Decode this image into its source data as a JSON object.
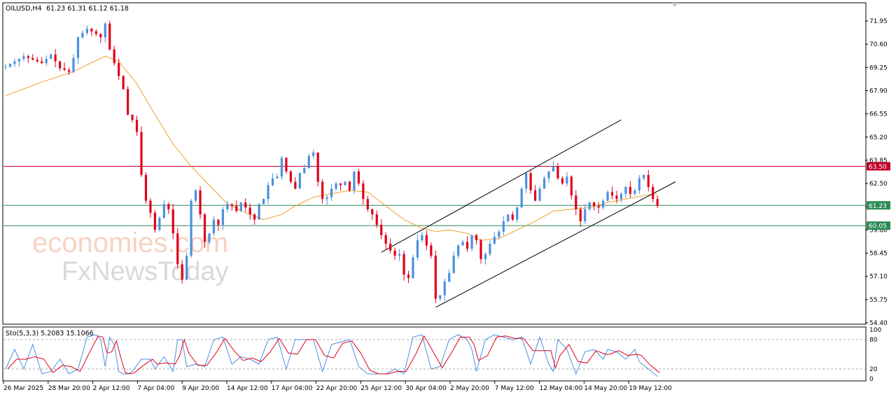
{
  "header": {
    "symbol": "OILUSD,H4",
    "ohlc": "61.23 61.31 61.12 61.18"
  },
  "colors": {
    "bull": "#4a90e2",
    "bear": "#e0001b",
    "ma": "#f0a030",
    "resistance": "#c0002a",
    "support": "#2e8b57",
    "channel": "#000000",
    "stoch_k": "#4a90e2",
    "stoch_d": "#e0001b"
  },
  "watermark": {
    "line1": "economies.com",
    "line2": "FxNewsToday"
  },
  "stochastic": {
    "label": "Sto(5,3,3) 5.2083 15.1066",
    "axis": [
      "100",
      "80",
      "20",
      "0"
    ]
  },
  "chart_data": {
    "type": "candlestick",
    "title": "OILUSD,H4",
    "y_ticks": [
      "71.95",
      "70.60",
      "69.25",
      "67.90",
      "66.55",
      "65.20",
      "63.85",
      "62.50",
      "61.15",
      "59.80",
      "58.45",
      "57.10",
      "55.75",
      "54.40"
    ],
    "ylim": [
      54.4,
      72.5
    ],
    "x_ticks": [
      "26 Mar 2025",
      "28 Mar 20:00",
      "2 Apr 12:00",
      "7 Apr 04:00",
      "9 Apr 20:00",
      "14 Apr 12:00",
      "17 Apr 04:00",
      "22 Apr 20:00",
      "25 Apr 12:00",
      "30 Apr 04:00",
      "2 May 20:00",
      "7 May 12:00",
      "12 May 04:00",
      "14 May 20:00",
      "19 May 12:00"
    ],
    "price_levels": [
      {
        "label": "63.50",
        "value": 63.5,
        "color": "#c0002a"
      },
      {
        "label": "61.23",
        "value": 61.23,
        "color": "#2e8b57"
      },
      {
        "label": "60.05",
        "value": 60.05,
        "color": "#2e8b57"
      }
    ],
    "price_path": [
      [
        0,
        69.3
      ],
      [
        4,
        69.9
      ],
      [
        8,
        69.5
      ],
      [
        10,
        70.0
      ],
      [
        12,
        69.2
      ],
      [
        14,
        69.0
      ],
      [
        15,
        69.8
      ],
      [
        16,
        71.0
      ],
      [
        18,
        71.5
      ],
      [
        20,
        71.2
      ],
      [
        21,
        71.0
      ],
      [
        22,
        71.8
      ],
      [
        23,
        70.3
      ],
      [
        24,
        69.5
      ],
      [
        26,
        68.0
      ],
      [
        27,
        66.5
      ],
      [
        28,
        66.2
      ],
      [
        29,
        65.5
      ],
      [
        30,
        63.0
      ],
      [
        31,
        61.5
      ],
      [
        32,
        60.8
      ],
      [
        33,
        59.8
      ],
      [
        34,
        60.5
      ],
      [
        35,
        61.3
      ],
      [
        36,
        61.0
      ],
      [
        37,
        59.6
      ],
      [
        38,
        57.8
      ],
      [
        39,
        56.9
      ],
      [
        40,
        58.3
      ],
      [
        41,
        61.5
      ],
      [
        42,
        62.1
      ],
      [
        43,
        60.7
      ],
      [
        44,
        59.1
      ],
      [
        45,
        59.6
      ],
      [
        46,
        60.4
      ],
      [
        47,
        60.1
      ],
      [
        48,
        61.0
      ],
      [
        49,
        61.3
      ],
      [
        50,
        61.2
      ],
      [
        51,
        60.9
      ],
      [
        52,
        61.4
      ],
      [
        53,
        61.1
      ],
      [
        54,
        60.7
      ],
      [
        55,
        60.4
      ],
      [
        56,
        61.3
      ],
      [
        57,
        61.6
      ],
      [
        58,
        62.4
      ],
      [
        59,
        62.8
      ],
      [
        60,
        62.9
      ],
      [
        61,
        64.0
      ],
      [
        62,
        63.2
      ],
      [
        63,
        62.6
      ],
      [
        64,
        62.2
      ],
      [
        65,
        63.1
      ],
      [
        66,
        63.4
      ],
      [
        67,
        64.1
      ],
      [
        68,
        64.3
      ],
      [
        69,
        62.6
      ],
      [
        70,
        61.6
      ],
      [
        71,
        61.7
      ],
      [
        72,
        62.2
      ],
      [
        73,
        62.5
      ],
      [
        74,
        62.4
      ],
      [
        75,
        62.6
      ],
      [
        76,
        62.1
      ],
      [
        77,
        63.2
      ],
      [
        78,
        62.5
      ],
      [
        79,
        61.6
      ],
      [
        80,
        61.0
      ],
      [
        81,
        60.7
      ],
      [
        82,
        60.1
      ],
      [
        83,
        59.5
      ],
      [
        84,
        59.0
      ],
      [
        85,
        58.6
      ],
      [
        86,
        58.3
      ],
      [
        87,
        58.4
      ],
      [
        88,
        57.2
      ],
      [
        89,
        57.0
      ],
      [
        90,
        58.2
      ],
      [
        91,
        59.2
      ],
      [
        92,
        59.5
      ],
      [
        93,
        58.9
      ],
      [
        94,
        58.3
      ],
      [
        95,
        55.8
      ],
      [
        96,
        56.0
      ],
      [
        97,
        56.8
      ],
      [
        98,
        57.3
      ],
      [
        99,
        58.3
      ],
      [
        100,
        58.9
      ],
      [
        101,
        59.1
      ],
      [
        102,
        58.7
      ],
      [
        103,
        59.5
      ],
      [
        104,
        59.2
      ],
      [
        105,
        58.1
      ],
      [
        106,
        58.4
      ],
      [
        107,
        59.0
      ],
      [
        108,
        59.4
      ],
      [
        109,
        59.7
      ],
      [
        110,
        60.3
      ],
      [
        111,
        60.7
      ],
      [
        112,
        60.4
      ],
      [
        113,
        61.1
      ],
      [
        114,
        62.2
      ],
      [
        115,
        63.1
      ],
      [
        116,
        62.1
      ],
      [
        117,
        61.5
      ],
      [
        118,
        62.2
      ],
      [
        119,
        62.8
      ],
      [
        120,
        63.2
      ],
      [
        121,
        63.5
      ],
      [
        122,
        62.8
      ],
      [
        123,
        62.5
      ],
      [
        124,
        62.9
      ],
      [
        125,
        61.8
      ],
      [
        126,
        61.0
      ],
      [
        127,
        60.3
      ],
      [
        128,
        61.0
      ],
      [
        129,
        61.4
      ],
      [
        130,
        61.2
      ],
      [
        131,
        61.1
      ],
      [
        132,
        61.5
      ],
      [
        133,
        62.0
      ],
      [
        134,
        61.8
      ],
      [
        135,
        61.6
      ],
      [
        136,
        61.9
      ],
      [
        137,
        62.3
      ],
      [
        138,
        61.9
      ],
      [
        139,
        62.1
      ],
      [
        140,
        62.8
      ],
      [
        141,
        63.0
      ],
      [
        142,
        62.3
      ],
      [
        143,
        61.6
      ],
      [
        144,
        61.2
      ]
    ],
    "ma_path": [
      [
        0,
        67.6
      ],
      [
        8,
        68.4
      ],
      [
        15,
        69.0
      ],
      [
        18,
        69.4
      ],
      [
        22,
        69.9
      ],
      [
        25,
        69.6
      ],
      [
        29,
        68.3
      ],
      [
        33,
        66.5
      ],
      [
        37,
        64.8
      ],
      [
        41,
        63.5
      ],
      [
        45,
        62.4
      ],
      [
        49,
        61.3
      ],
      [
        53,
        60.8
      ],
      [
        57,
        60.4
      ],
      [
        61,
        60.7
      ],
      [
        64,
        61.2
      ],
      [
        68,
        61.7
      ],
      [
        72,
        61.9
      ],
      [
        76,
        62.1
      ],
      [
        80,
        62.0
      ],
      [
        84,
        61.2
      ],
      [
        88,
        60.4
      ],
      [
        92,
        59.9
      ],
      [
        95,
        59.7
      ],
      [
        98,
        59.8
      ],
      [
        102,
        59.6
      ],
      [
        105,
        59.2
      ],
      [
        109,
        59.3
      ],
      [
        113,
        59.8
      ],
      [
        117,
        60.3
      ],
      [
        121,
        60.9
      ],
      [
        125,
        61.0
      ],
      [
        129,
        61.1
      ],
      [
        133,
        61.4
      ],
      [
        137,
        61.6
      ],
      [
        141,
        61.8
      ],
      [
        144,
        61.9
      ]
    ],
    "channel": {
      "upper": [
        [
          83,
          58.5
        ],
        [
          136,
          66.2
        ]
      ],
      "lower": [
        [
          95,
          55.3
        ],
        [
          148,
          62.6
        ]
      ]
    },
    "stoch_k_path": [
      [
        0,
        20
      ],
      [
        2,
        60
      ],
      [
        4,
        20
      ],
      [
        6,
        70
      ],
      [
        8,
        10
      ],
      [
        10,
        15
      ],
      [
        12,
        40
      ],
      [
        14,
        10
      ],
      [
        16,
        20
      ],
      [
        18,
        85
      ],
      [
        20,
        90
      ],
      [
        21,
        80
      ],
      [
        22,
        25
      ],
      [
        23,
        85
      ],
      [
        24,
        70
      ],
      [
        25,
        15
      ],
      [
        26,
        10
      ],
      [
        27,
        10
      ],
      [
        28,
        15
      ],
      [
        30,
        40
      ],
      [
        32,
        40
      ],
      [
        33,
        20
      ],
      [
        35,
        45
      ],
      [
        37,
        15
      ],
      [
        38,
        80
      ],
      [
        39,
        80
      ],
      [
        40,
        25
      ],
      [
        42,
        30
      ],
      [
        44,
        25
      ],
      [
        46,
        80
      ],
      [
        48,
        85
      ],
      [
        50,
        30
      ],
      [
        52,
        45
      ],
      [
        54,
        40
      ],
      [
        56,
        30
      ],
      [
        58,
        80
      ],
      [
        60,
        85
      ],
      [
        62,
        20
      ],
      [
        64,
        80
      ],
      [
        66,
        80
      ],
      [
        68,
        80
      ],
      [
        70,
        15
      ],
      [
        72,
        70
      ],
      [
        74,
        75
      ],
      [
        76,
        80
      ],
      [
        78,
        25
      ],
      [
        80,
        10
      ],
      [
        82,
        10
      ],
      [
        84,
        10
      ],
      [
        86,
        20
      ],
      [
        88,
        10
      ],
      [
        90,
        85
      ],
      [
        92,
        90
      ],
      [
        94,
        20
      ],
      [
        96,
        25
      ],
      [
        98,
        80
      ],
      [
        100,
        90
      ],
      [
        102,
        80
      ],
      [
        103,
        60
      ],
      [
        104,
        15
      ],
      [
        106,
        80
      ],
      [
        108,
        90
      ],
      [
        110,
        85
      ],
      [
        112,
        80
      ],
      [
        114,
        85
      ],
      [
        116,
        30
      ],
      [
        118,
        85
      ],
      [
        120,
        30
      ],
      [
        121,
        15
      ],
      [
        122,
        80
      ],
      [
        124,
        60
      ],
      [
        126,
        10
      ],
      [
        128,
        55
      ],
      [
        130,
        60
      ],
      [
        132,
        40
      ],
      [
        133,
        60
      ],
      [
        135,
        55
      ],
      [
        137,
        40
      ],
      [
        139,
        60
      ],
      [
        140,
        35
      ],
      [
        142,
        20
      ],
      [
        144,
        5
      ]
    ]
  }
}
